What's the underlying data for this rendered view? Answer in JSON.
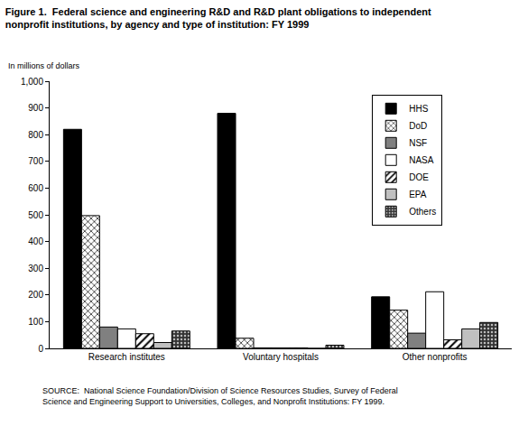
{
  "chart_data": {
    "type": "bar",
    "title": [
      "Figure 1.  Federal science and engineering R&D and R&D plant obligations to independent",
      "nonprofit institutions, by agency and type of institution: FY 1999"
    ],
    "ylabel": "In millions of dollars",
    "source": [
      "SOURCE:  National Science Foundation/Division of Science Resources Studies, Survey of Federal",
      "Science and Engineering Support to Universities, Colleges, and Nonprofit Institutions: FY 1999."
    ],
    "categories": [
      "Research institutes",
      "Voluntary hospitals",
      "Other nonprofits"
    ],
    "series": [
      {
        "name": "HHS",
        "color": "#000000",
        "marker": "solid",
        "values": [
          820,
          880,
          193
        ]
      },
      {
        "name": "DoD",
        "color": "#ffffff",
        "marker": "crosshatch",
        "values": [
          497,
          38,
          143
        ]
      },
      {
        "name": "NSF",
        "color": "#808080",
        "marker": "solid",
        "values": [
          80,
          2,
          57
        ]
      },
      {
        "name": "NASA",
        "color": "#ffffff",
        "marker": "solid",
        "values": [
          73,
          2,
          212
        ]
      },
      {
        "name": "DOE",
        "color": "#ffffff",
        "marker": "diagonal",
        "values": [
          55,
          2,
          32
        ]
      },
      {
        "name": "EPA",
        "color": "#c0c0c0",
        "marker": "solid",
        "values": [
          22,
          0,
          73
        ]
      },
      {
        "name": "Others",
        "color": "#333333",
        "marker": "dotted",
        "values": [
          65,
          12,
          97
        ]
      }
    ],
    "ylim": [
      0,
      1000
    ],
    "yticks": [
      0,
      100,
      200,
      300,
      400,
      500,
      600,
      700,
      800,
      900,
      {
        "value": 1000,
        "label": "1,000"
      }
    ],
    "grid": false,
    "legend": "upper right"
  }
}
